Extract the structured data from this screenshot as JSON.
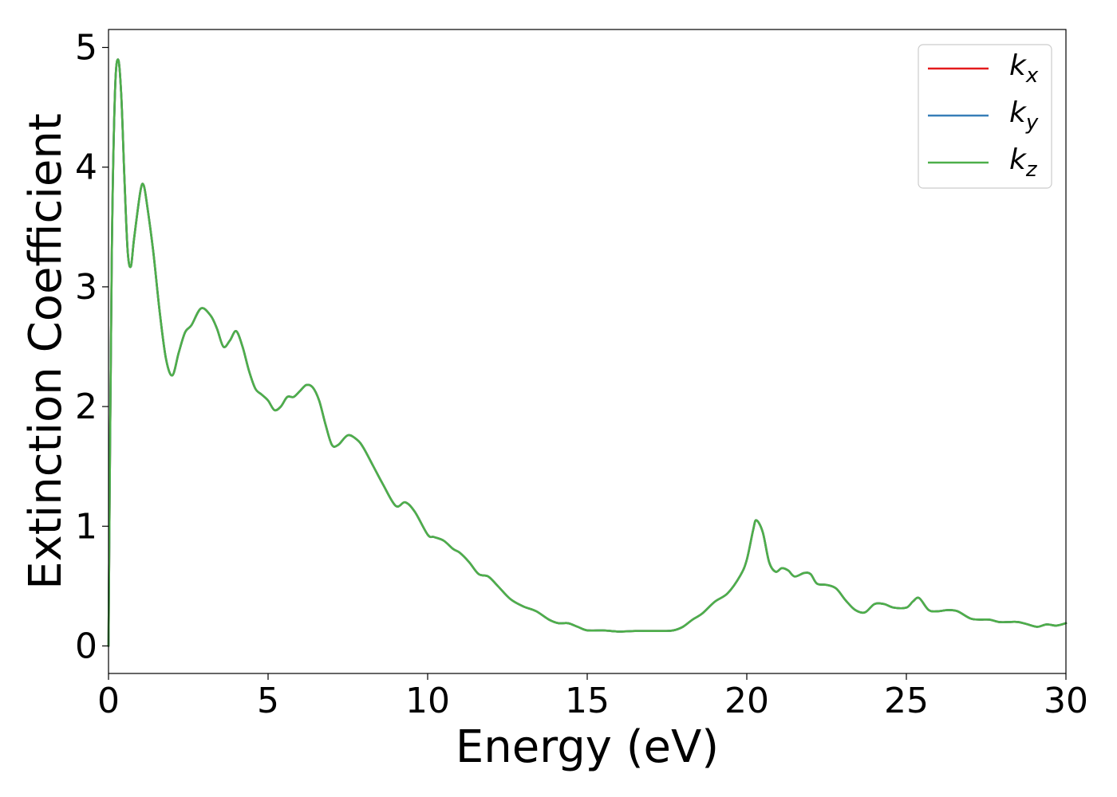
{
  "chart_data": {
    "type": "line",
    "xlabel": "Energy (eV)",
    "ylabel": "Extinction Coefficient",
    "xlim": [
      0,
      30
    ],
    "ylim": [
      -0.23,
      5.15
    ],
    "xticks": [
      "0",
      "5",
      "10",
      "15",
      "20",
      "25",
      "30"
    ],
    "yticks": [
      "0",
      "1",
      "2",
      "3",
      "4",
      "5"
    ],
    "grid": false,
    "legend_position": "top-right",
    "x": [
      0,
      0.1,
      0.2,
      0.3,
      0.4,
      0.5,
      0.6,
      0.7,
      0.8,
      1.0,
      1.1,
      1.2,
      1.4,
      1.6,
      1.8,
      2.0,
      2.2,
      2.4,
      2.6,
      2.9,
      3.2,
      3.4,
      3.6,
      3.8,
      4.0,
      4.2,
      4.4,
      4.6,
      4.8,
      5.0,
      5.2,
      5.4,
      5.6,
      5.8,
      6.0,
      6.2,
      6.4,
      6.6,
      6.8,
      7.0,
      7.2,
      7.5,
      7.8,
      8.0,
      8.3,
      8.6,
      9.0,
      9.3,
      9.6,
      10.0,
      10.2,
      10.5,
      10.8,
      11.0,
      11.3,
      11.6,
      11.9,
      12.2,
      12.6,
      13.0,
      13.4,
      13.8,
      14.1,
      14.4,
      14.7,
      15.0,
      15.5,
      16.0,
      16.5,
      17.0,
      17.4,
      17.7,
      18.0,
      18.3,
      18.6,
      19.0,
      19.4,
      19.8,
      20.0,
      20.2,
      20.3,
      20.5,
      20.7,
      20.9,
      21.1,
      21.3,
      21.5,
      21.8,
      22.0,
      22.2,
      22.5,
      22.8,
      23.1,
      23.4,
      23.7,
      24.0,
      24.3,
      24.6,
      25.0,
      25.2,
      25.4,
      25.7,
      26.0,
      26.3,
      26.6,
      27.0,
      27.3,
      27.6,
      27.9,
      28.2,
      28.5,
      28.8,
      29.1,
      29.4,
      29.7,
      30.0
    ],
    "series": [
      {
        "name": "k_x",
        "label_base": "k",
        "label_sub": "x",
        "color": "#e41a1c",
        "values": [
          0,
          3.2,
          4.6,
          4.9,
          4.6,
          3.9,
          3.3,
          3.17,
          3.4,
          3.8,
          3.85,
          3.7,
          3.3,
          2.8,
          2.4,
          2.26,
          2.45,
          2.62,
          2.68,
          2.82,
          2.76,
          2.65,
          2.5,
          2.55,
          2.63,
          2.5,
          2.3,
          2.15,
          2.1,
          2.05,
          1.97,
          2.0,
          2.08,
          2.08,
          2.13,
          2.18,
          2.16,
          2.05,
          1.85,
          1.68,
          1.68,
          1.76,
          1.72,
          1.65,
          1.5,
          1.35,
          1.17,
          1.2,
          1.12,
          0.93,
          0.91,
          0.88,
          0.81,
          0.78,
          0.7,
          0.6,
          0.58,
          0.5,
          0.39,
          0.33,
          0.29,
          0.22,
          0.19,
          0.19,
          0.16,
          0.13,
          0.13,
          0.12,
          0.125,
          0.125,
          0.125,
          0.13,
          0.16,
          0.22,
          0.27,
          0.37,
          0.44,
          0.59,
          0.72,
          0.97,
          1.05,
          0.95,
          0.7,
          0.62,
          0.65,
          0.63,
          0.58,
          0.61,
          0.6,
          0.52,
          0.51,
          0.48,
          0.38,
          0.3,
          0.28,
          0.35,
          0.35,
          0.32,
          0.32,
          0.37,
          0.4,
          0.3,
          0.29,
          0.3,
          0.29,
          0.23,
          0.22,
          0.22,
          0.2,
          0.2,
          0.2,
          0.18,
          0.16,
          0.18,
          0.17,
          0.19
        ]
      },
      {
        "name": "k_y",
        "label_base": "k",
        "label_sub": "y",
        "color": "#377eb8",
        "values": [
          0,
          3.2,
          4.6,
          4.9,
          4.6,
          3.9,
          3.3,
          3.17,
          3.4,
          3.8,
          3.85,
          3.7,
          3.3,
          2.8,
          2.4,
          2.26,
          2.45,
          2.62,
          2.68,
          2.82,
          2.76,
          2.65,
          2.5,
          2.55,
          2.63,
          2.5,
          2.3,
          2.15,
          2.1,
          2.05,
          1.97,
          2.0,
          2.08,
          2.08,
          2.13,
          2.18,
          2.16,
          2.05,
          1.85,
          1.68,
          1.68,
          1.76,
          1.72,
          1.65,
          1.5,
          1.35,
          1.17,
          1.2,
          1.12,
          0.93,
          0.91,
          0.88,
          0.81,
          0.78,
          0.7,
          0.6,
          0.58,
          0.5,
          0.39,
          0.33,
          0.29,
          0.22,
          0.19,
          0.19,
          0.16,
          0.13,
          0.13,
          0.12,
          0.125,
          0.125,
          0.125,
          0.13,
          0.16,
          0.22,
          0.27,
          0.37,
          0.44,
          0.59,
          0.72,
          0.97,
          1.05,
          0.95,
          0.7,
          0.62,
          0.65,
          0.63,
          0.58,
          0.61,
          0.6,
          0.52,
          0.51,
          0.48,
          0.38,
          0.3,
          0.28,
          0.35,
          0.35,
          0.32,
          0.32,
          0.37,
          0.4,
          0.3,
          0.29,
          0.3,
          0.29,
          0.23,
          0.22,
          0.22,
          0.2,
          0.2,
          0.2,
          0.18,
          0.16,
          0.18,
          0.17,
          0.19
        ]
      },
      {
        "name": "k_z",
        "label_base": "k",
        "label_sub": "z",
        "color": "#4daf4a",
        "values": [
          0,
          3.2,
          4.6,
          4.9,
          4.6,
          3.9,
          3.3,
          3.17,
          3.4,
          3.8,
          3.85,
          3.7,
          3.3,
          2.8,
          2.4,
          2.26,
          2.45,
          2.62,
          2.68,
          2.82,
          2.76,
          2.65,
          2.5,
          2.55,
          2.63,
          2.5,
          2.3,
          2.15,
          2.1,
          2.05,
          1.97,
          2.0,
          2.08,
          2.08,
          2.13,
          2.18,
          2.16,
          2.05,
          1.85,
          1.68,
          1.68,
          1.76,
          1.72,
          1.65,
          1.5,
          1.35,
          1.17,
          1.2,
          1.12,
          0.93,
          0.91,
          0.88,
          0.81,
          0.78,
          0.7,
          0.6,
          0.58,
          0.5,
          0.39,
          0.33,
          0.29,
          0.22,
          0.19,
          0.19,
          0.16,
          0.13,
          0.13,
          0.12,
          0.125,
          0.125,
          0.125,
          0.13,
          0.16,
          0.22,
          0.27,
          0.37,
          0.44,
          0.59,
          0.72,
          0.97,
          1.05,
          0.95,
          0.7,
          0.62,
          0.65,
          0.63,
          0.58,
          0.61,
          0.6,
          0.52,
          0.51,
          0.48,
          0.38,
          0.3,
          0.28,
          0.35,
          0.35,
          0.32,
          0.32,
          0.37,
          0.4,
          0.3,
          0.29,
          0.3,
          0.29,
          0.23,
          0.22,
          0.22,
          0.2,
          0.2,
          0.2,
          0.18,
          0.16,
          0.18,
          0.17,
          0.19
        ]
      }
    ]
  }
}
